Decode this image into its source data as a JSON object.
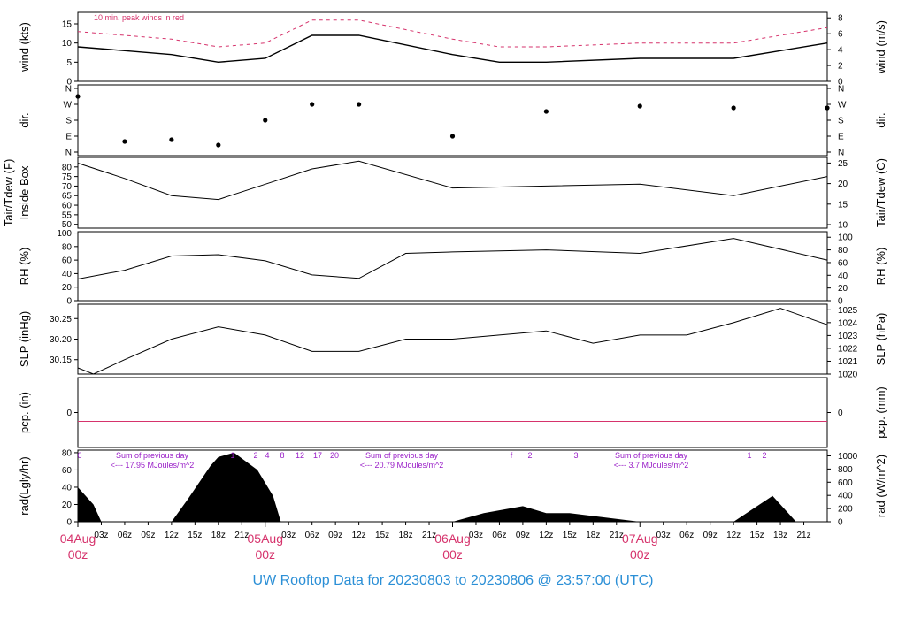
{
  "title": "UW Rooftop Data for 20230803  to  20230806 @ 23:57:00  (UTC)",
  "colors": {
    "red": "#d6336c",
    "blue": "#2b8fd6",
    "purple": "#9a20c8",
    "black": "#000000"
  },
  "x_axis": {
    "minor_ticks": [
      "03z",
      "06z",
      "09z",
      "12z",
      "15z",
      "18z",
      "21z"
    ],
    "major_ticks": [
      {
        "date": "04Aug",
        "hour": "00z"
      },
      {
        "date": "05Aug",
        "hour": "00z"
      },
      {
        "date": "06Aug",
        "hour": "00z"
      },
      {
        "date": "07Aug",
        "hour": "00z"
      }
    ]
  },
  "chart_data": [
    {
      "type": "line",
      "ylabel_left": "wind (kts)",
      "ylabel_right": "wind (m/s)",
      "yticks_left": [
        "0",
        "5",
        "10",
        "15"
      ],
      "yticks_right": [
        "0",
        "2",
        "4",
        "6",
        "8"
      ],
      "ylim": [
        0,
        18
      ],
      "annotation": "10 min. peak winds in red",
      "x_hours": [
        0,
        6,
        12,
        18,
        24,
        30,
        36,
        48,
        54,
        60,
        72,
        84,
        96
      ],
      "series": [
        {
          "values": [
            9,
            8,
            7,
            5,
            6,
            12,
            12,
            7,
            5,
            5,
            6,
            6,
            10
          ]
        }
      ]
    },
    {
      "type": "scatter",
      "ylabel_left": "dir.",
      "ylabel_right": "dir.",
      "yticks_left": [
        "N",
        "E",
        "S",
        "W",
        "N"
      ],
      "yticks_right": [
        "N",
        "E",
        "S",
        "W",
        "N"
      ],
      "x_hours": [
        0,
        6,
        12,
        18,
        24,
        30,
        36,
        48,
        60,
        72,
        84,
        96
      ],
      "series": [
        {
          "values": [
            315,
            60,
            70,
            40,
            180,
            270,
            270,
            90,
            230,
            260,
            250,
            250
          ]
        }
      ]
    },
    {
      "type": "line",
      "ylabel_left": "Tair/Tdew (F)",
      "ylabel_left2": "Inside Box",
      "ylabel_right": "Tair/Tdew (C)",
      "yticks_left": [
        "50",
        "55",
        "60",
        "65",
        "70",
        "75",
        "80"
      ],
      "yticks_right": [
        "10",
        "15",
        "20",
        "25"
      ],
      "ylim": [
        48,
        85
      ],
      "x_hours": [
        0,
        6,
        12,
        18,
        24,
        30,
        36,
        48,
        60,
        72,
        84,
        96
      ],
      "series": [
        {
          "values": [
            82,
            74,
            65,
            63,
            71,
            79,
            83,
            69,
            70,
            71,
            65,
            75
          ]
        }
      ]
    },
    {
      "type": "line",
      "ylabel_left": "RH (%)",
      "ylabel_right": "RH (%)",
      "yticks_left": [
        "0",
        "20",
        "40",
        "60",
        "80",
        "100"
      ],
      "yticks_right": [
        "0",
        "20",
        "40",
        "60",
        "80",
        "100"
      ],
      "ylim": [
        0,
        102
      ],
      "x_hours": [
        0,
        6,
        12,
        18,
        24,
        30,
        36,
        42,
        48,
        60,
        72,
        84,
        96
      ],
      "series": [
        {
          "values": [
            32,
            45,
            66,
            68,
            59,
            38,
            33,
            70,
            72,
            75,
            70,
            92,
            60
          ]
        }
      ]
    },
    {
      "type": "line",
      "ylabel_left": "SLP (inHg)",
      "ylabel_right": "SLP (hPa)",
      "yticks_left": [
        "30.15",
        "30.20",
        "30.25"
      ],
      "yticks_right": [
        "1020",
        "1021",
        "1022",
        "1023",
        "1024",
        "1025"
      ],
      "ylim": [
        30.115,
        30.285
      ],
      "x_hours": [
        0,
        2,
        6,
        12,
        18,
        24,
        30,
        36,
        42,
        48,
        54,
        60,
        66,
        72,
        78,
        84,
        90,
        96
      ],
      "series": [
        {
          "values": [
            30.13,
            30.115,
            30.15,
            30.2,
            30.23,
            30.21,
            30.17,
            30.17,
            30.2,
            30.2,
            30.21,
            30.22,
            30.19,
            30.21,
            30.21,
            30.24,
            30.275,
            30.235
          ]
        }
      ]
    },
    {
      "type": "line",
      "ylabel_left": "pcp. (in)",
      "ylabel_right": "pcp. (mm)",
      "yticks_left": [
        "0"
      ],
      "yticks_right": [
        "0"
      ],
      "x_hours": [
        0,
        96
      ],
      "series": [
        {
          "values": [
            0,
            0
          ]
        }
      ]
    },
    {
      "type": "area",
      "ylabel_left": "rad(Lgly/hr)",
      "ylabel_right": "rad (W/m^2)",
      "yticks_left": [
        "0",
        "20",
        "40",
        "60",
        "80"
      ],
      "yticks_right": [
        "0",
        "200",
        "400",
        "600",
        "800",
        "1000"
      ],
      "ylim": [
        0,
        83
      ],
      "x_hours": [
        0,
        2,
        3,
        12,
        14,
        17,
        18,
        20,
        23,
        25,
        26,
        48,
        52,
        57,
        60,
        63,
        72,
        84,
        89,
        92
      ],
      "series": [
        {
          "values": [
            40,
            20,
            0,
            0,
            25,
            65,
            75,
            80,
            60,
            30,
            0,
            0,
            10,
            18,
            10,
            10,
            0,
            0,
            30,
            0
          ]
        }
      ],
      "hour_labels": [
        "6",
        "1",
        "2",
        "4",
        "8",
        "12",
        "17",
        "20",
        "f",
        "2",
        "3",
        "1",
        "2"
      ],
      "daily_sums": [
        {
          "label": "Sum of previous day",
          "value": "<--- 17.95 MJoules/m^2"
        },
        {
          "label": "Sum of previous day",
          "value": "<--- 20.79 MJoules/m^2"
        },
        {
          "label": "Sum of previous day",
          "value": "<--- 3.7 MJoules/m^2"
        }
      ]
    }
  ]
}
